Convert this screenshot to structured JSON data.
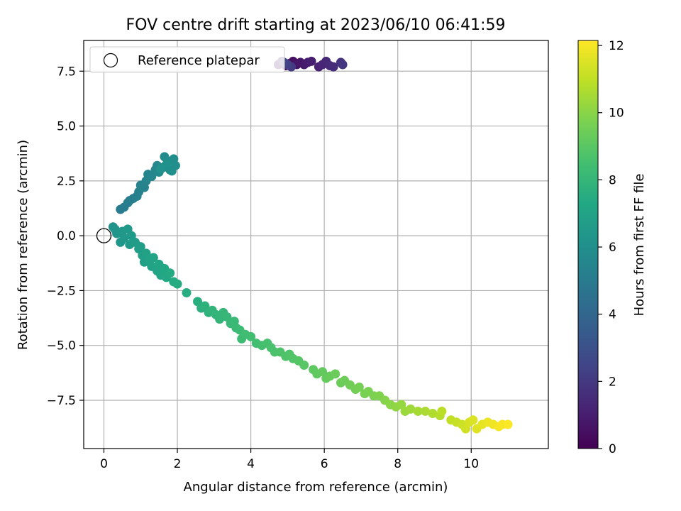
{
  "chart_data": {
    "type": "scatter",
    "title": "FOV centre drift starting at 2023/06/10 06:41:59",
    "xlabel": "Angular distance from reference (arcmin)",
    "ylabel": "Rotation from reference (arcmin)",
    "xlim": [
      -0.55,
      12.1
    ],
    "ylim": [
      -9.7,
      8.9
    ],
    "xticks": [
      0,
      2,
      4,
      6,
      8,
      10
    ],
    "xtick_labels": [
      "0",
      "2",
      "4",
      "6",
      "8",
      "10"
    ],
    "yticks": [
      -7.5,
      -5.0,
      -2.5,
      0.0,
      2.5,
      5.0,
      7.5
    ],
    "ytick_labels": [
      "−7.5",
      "−5.0",
      "−2.5",
      "0.0",
      "2.5",
      "5.0",
      "7.5"
    ],
    "grid": true,
    "legend": {
      "position": "top-left",
      "entries": [
        "Reference platepar"
      ]
    },
    "reference_point": {
      "x": 0,
      "y": 0,
      "marker": "open-circle"
    },
    "colorbar": {
      "label": "Hours from first FF file",
      "min": 0,
      "max": 12.15,
      "ticks": [
        0,
        2,
        4,
        6,
        8,
        10,
        12
      ],
      "tick_labels": [
        "0",
        "2",
        "4",
        "6",
        "8",
        "10",
        "12"
      ],
      "colormap": "viridis"
    },
    "points": [
      {
        "x": 4.75,
        "y": 7.8,
        "h": 0.15
      },
      {
        "x": 4.85,
        "y": 7.95,
        "h": 0.25
      },
      {
        "x": 4.95,
        "y": 7.75,
        "h": 0.35
      },
      {
        "x": 5.05,
        "y": 7.85,
        "h": 0.45
      },
      {
        "x": 5.15,
        "y": 7.95,
        "h": 0.55
      },
      {
        "x": 5.25,
        "y": 7.8,
        "h": 0.65
      },
      {
        "x": 5.35,
        "y": 7.9,
        "h": 0.75
      },
      {
        "x": 5.45,
        "y": 7.8,
        "h": 0.85
      },
      {
        "x": 5.55,
        "y": 7.9,
        "h": 0.95
      },
      {
        "x": 5.65,
        "y": 7.95,
        "h": 1.05
      },
      {
        "x": 5.85,
        "y": 7.7,
        "h": 1.15
      },
      {
        "x": 5.95,
        "y": 7.8,
        "h": 1.25
      },
      {
        "x": 6.05,
        "y": 7.95,
        "h": 1.35
      },
      {
        "x": 6.15,
        "y": 7.75,
        "h": 1.45
      },
      {
        "x": 6.25,
        "y": 7.7,
        "h": 1.55
      },
      {
        "x": 6.45,
        "y": 7.9,
        "h": 1.7
      },
      {
        "x": 6.5,
        "y": 7.8,
        "h": 1.9
      },
      {
        "x": 5.1,
        "y": 7.7,
        "h": 2.1
      },
      {
        "x": 5.0,
        "y": 7.8,
        "h": 2.3
      },
      {
        "x": 4.9,
        "y": 7.9,
        "h": 2.5
      },
      {
        "x": 0.45,
        "y": 1.2,
        "h": 5.0
      },
      {
        "x": 0.55,
        "y": 1.3,
        "h": 5.05
      },
      {
        "x": 0.65,
        "y": 1.5,
        "h": 5.1
      },
      {
        "x": 0.7,
        "y": 1.6,
        "h": 5.15
      },
      {
        "x": 0.8,
        "y": 1.7,
        "h": 5.2
      },
      {
        "x": 0.9,
        "y": 1.8,
        "h": 5.25
      },
      {
        "x": 0.95,
        "y": 2.0,
        "h": 5.3
      },
      {
        "x": 1.0,
        "y": 2.3,
        "h": 5.35
      },
      {
        "x": 1.1,
        "y": 2.2,
        "h": 5.4
      },
      {
        "x": 1.15,
        "y": 2.5,
        "h": 5.45
      },
      {
        "x": 1.2,
        "y": 2.8,
        "h": 5.5
      },
      {
        "x": 1.3,
        "y": 2.7,
        "h": 5.55
      },
      {
        "x": 1.4,
        "y": 3.0,
        "h": 5.6
      },
      {
        "x": 1.45,
        "y": 3.2,
        "h": 5.65
      },
      {
        "x": 1.5,
        "y": 2.9,
        "h": 5.7
      },
      {
        "x": 1.6,
        "y": 3.1,
        "h": 5.75
      },
      {
        "x": 1.65,
        "y": 3.6,
        "h": 5.8
      },
      {
        "x": 1.75,
        "y": 3.4,
        "h": 5.85
      },
      {
        "x": 1.8,
        "y": 3.0,
        "h": 5.9
      },
      {
        "x": 1.9,
        "y": 3.5,
        "h": 5.95
      },
      {
        "x": 1.95,
        "y": 3.2,
        "h": 6.0
      },
      {
        "x": 1.85,
        "y": 2.95,
        "h": 6.05
      },
      {
        "x": 1.7,
        "y": 3.25,
        "h": 6.1
      },
      {
        "x": 1.55,
        "y": 3.05,
        "h": 6.15
      },
      {
        "x": 0.25,
        "y": 0.4,
        "h": 6.2
      },
      {
        "x": 0.3,
        "y": 0.3,
        "h": 6.25
      },
      {
        "x": 0.35,
        "y": 0.1,
        "h": 6.3
      },
      {
        "x": 0.45,
        "y": -0.3,
        "h": 6.35
      },
      {
        "x": 0.5,
        "y": 0.2,
        "h": 6.4
      },
      {
        "x": 0.55,
        "y": -0.1,
        "h": 6.45
      },
      {
        "x": 0.65,
        "y": 0.3,
        "h": 6.5
      },
      {
        "x": 0.7,
        "y": -0.4,
        "h": 6.55
      },
      {
        "x": 0.75,
        "y": 0.0,
        "h": 6.6
      },
      {
        "x": 0.85,
        "y": -0.3,
        "h": 6.65
      },
      {
        "x": 0.95,
        "y": -0.6,
        "h": 6.7
      },
      {
        "x": 1.0,
        "y": -0.5,
        "h": 6.75
      },
      {
        "x": 1.05,
        "y": -0.9,
        "h": 6.8
      },
      {
        "x": 1.1,
        "y": -1.2,
        "h": 6.85
      },
      {
        "x": 1.15,
        "y": -0.8,
        "h": 6.9
      },
      {
        "x": 1.25,
        "y": -1.1,
        "h": 6.95
      },
      {
        "x": 1.3,
        "y": -1.4,
        "h": 7.0
      },
      {
        "x": 1.35,
        "y": -1.0,
        "h": 7.05
      },
      {
        "x": 1.45,
        "y": -1.6,
        "h": 7.1
      },
      {
        "x": 1.5,
        "y": -1.3,
        "h": 7.15
      },
      {
        "x": 1.55,
        "y": -1.8,
        "h": 7.2
      },
      {
        "x": 1.65,
        "y": -1.5,
        "h": 7.25
      },
      {
        "x": 1.7,
        "y": -1.9,
        "h": 7.3
      },
      {
        "x": 1.8,
        "y": -1.7,
        "h": 7.35
      },
      {
        "x": 1.9,
        "y": -2.1,
        "h": 7.4
      },
      {
        "x": 2.0,
        "y": -2.2,
        "h": 7.45
      },
      {
        "x": 2.25,
        "y": -2.6,
        "h": 7.5
      },
      {
        "x": 2.55,
        "y": -3.0,
        "h": 7.6
      },
      {
        "x": 2.65,
        "y": -3.3,
        "h": 7.7
      },
      {
        "x": 2.75,
        "y": -3.2,
        "h": 7.75
      },
      {
        "x": 2.85,
        "y": -3.5,
        "h": 7.8
      },
      {
        "x": 2.95,
        "y": -3.4,
        "h": 7.85
      },
      {
        "x": 3.05,
        "y": -3.6,
        "h": 7.9
      },
      {
        "x": 3.15,
        "y": -3.8,
        "h": 7.95
      },
      {
        "x": 3.25,
        "y": -3.5,
        "h": 8.0
      },
      {
        "x": 3.35,
        "y": -3.7,
        "h": 8.05
      },
      {
        "x": 3.45,
        "y": -4.0,
        "h": 8.1
      },
      {
        "x": 3.55,
        "y": -3.9,
        "h": 8.15
      },
      {
        "x": 3.6,
        "y": -4.2,
        "h": 8.2
      },
      {
        "x": 3.7,
        "y": -4.3,
        "h": 8.25
      },
      {
        "x": 3.75,
        "y": -4.7,
        "h": 8.3
      },
      {
        "x": 3.85,
        "y": -4.5,
        "h": 8.35
      },
      {
        "x": 4.0,
        "y": -4.6,
        "h": 8.4
      },
      {
        "x": 4.15,
        "y": -4.9,
        "h": 8.45
      },
      {
        "x": 4.3,
        "y": -5.0,
        "h": 8.5
      },
      {
        "x": 4.45,
        "y": -4.9,
        "h": 8.55
      },
      {
        "x": 4.55,
        "y": -5.1,
        "h": 8.6
      },
      {
        "x": 4.65,
        "y": -5.3,
        "h": 8.65
      },
      {
        "x": 4.8,
        "y": -5.3,
        "h": 8.7
      },
      {
        "x": 4.95,
        "y": -5.5,
        "h": 8.75
      },
      {
        "x": 5.05,
        "y": -5.4,
        "h": 8.8
      },
      {
        "x": 5.15,
        "y": -5.6,
        "h": 8.85
      },
      {
        "x": 5.3,
        "y": -5.7,
        "h": 8.9
      },
      {
        "x": 5.45,
        "y": -5.9,
        "h": 8.95
      },
      {
        "x": 5.7,
        "y": -6.1,
        "h": 9.1
      },
      {
        "x": 5.8,
        "y": -6.3,
        "h": 9.15
      },
      {
        "x": 5.95,
        "y": -6.2,
        "h": 9.2
      },
      {
        "x": 6.05,
        "y": -6.5,
        "h": 9.25
      },
      {
        "x": 6.15,
        "y": -6.4,
        "h": 9.3
      },
      {
        "x": 6.3,
        "y": -6.3,
        "h": 9.35
      },
      {
        "x": 6.45,
        "y": -6.7,
        "h": 9.4
      },
      {
        "x": 6.55,
        "y": -6.6,
        "h": 9.45
      },
      {
        "x": 6.7,
        "y": -6.8,
        "h": 9.5
      },
      {
        "x": 6.85,
        "y": -7.0,
        "h": 9.55
      },
      {
        "x": 6.95,
        "y": -6.9,
        "h": 9.6
      },
      {
        "x": 7.1,
        "y": -7.2,
        "h": 9.65
      },
      {
        "x": 7.2,
        "y": -7.1,
        "h": 9.7
      },
      {
        "x": 7.35,
        "y": -7.3,
        "h": 9.75
      },
      {
        "x": 7.5,
        "y": -7.3,
        "h": 9.8
      },
      {
        "x": 7.65,
        "y": -7.5,
        "h": 9.9
      },
      {
        "x": 7.8,
        "y": -7.7,
        "h": 10.0
      },
      {
        "x": 7.95,
        "y": -7.8,
        "h": 10.1
      },
      {
        "x": 8.1,
        "y": -7.7,
        "h": 10.2
      },
      {
        "x": 8.2,
        "y": -8.0,
        "h": 10.3
      },
      {
        "x": 8.35,
        "y": -7.9,
        "h": 10.4
      },
      {
        "x": 8.55,
        "y": -8.0,
        "h": 10.5
      },
      {
        "x": 8.75,
        "y": -8.0,
        "h": 10.6
      },
      {
        "x": 8.95,
        "y": -8.1,
        "h": 10.7
      },
      {
        "x": 9.15,
        "y": -8.2,
        "h": 10.8
      },
      {
        "x": 9.2,
        "y": -8.0,
        "h": 10.9
      },
      {
        "x": 9.45,
        "y": -8.4,
        "h": 11.0
      },
      {
        "x": 9.6,
        "y": -8.5,
        "h": 11.1
      },
      {
        "x": 9.75,
        "y": -8.6,
        "h": 11.2
      },
      {
        "x": 9.85,
        "y": -8.8,
        "h": 11.3
      },
      {
        "x": 9.95,
        "y": -8.5,
        "h": 11.4
      },
      {
        "x": 10.05,
        "y": -8.4,
        "h": 11.5
      },
      {
        "x": 10.15,
        "y": -8.8,
        "h": 11.6
      },
      {
        "x": 10.3,
        "y": -8.6,
        "h": 11.7
      },
      {
        "x": 10.45,
        "y": -8.5,
        "h": 11.8
      },
      {
        "x": 10.6,
        "y": -8.6,
        "h": 11.9
      },
      {
        "x": 10.75,
        "y": -8.7,
        "h": 12.0
      },
      {
        "x": 10.85,
        "y": -8.6,
        "h": 12.05
      },
      {
        "x": 11.0,
        "y": -8.6,
        "h": 12.1
      }
    ]
  }
}
